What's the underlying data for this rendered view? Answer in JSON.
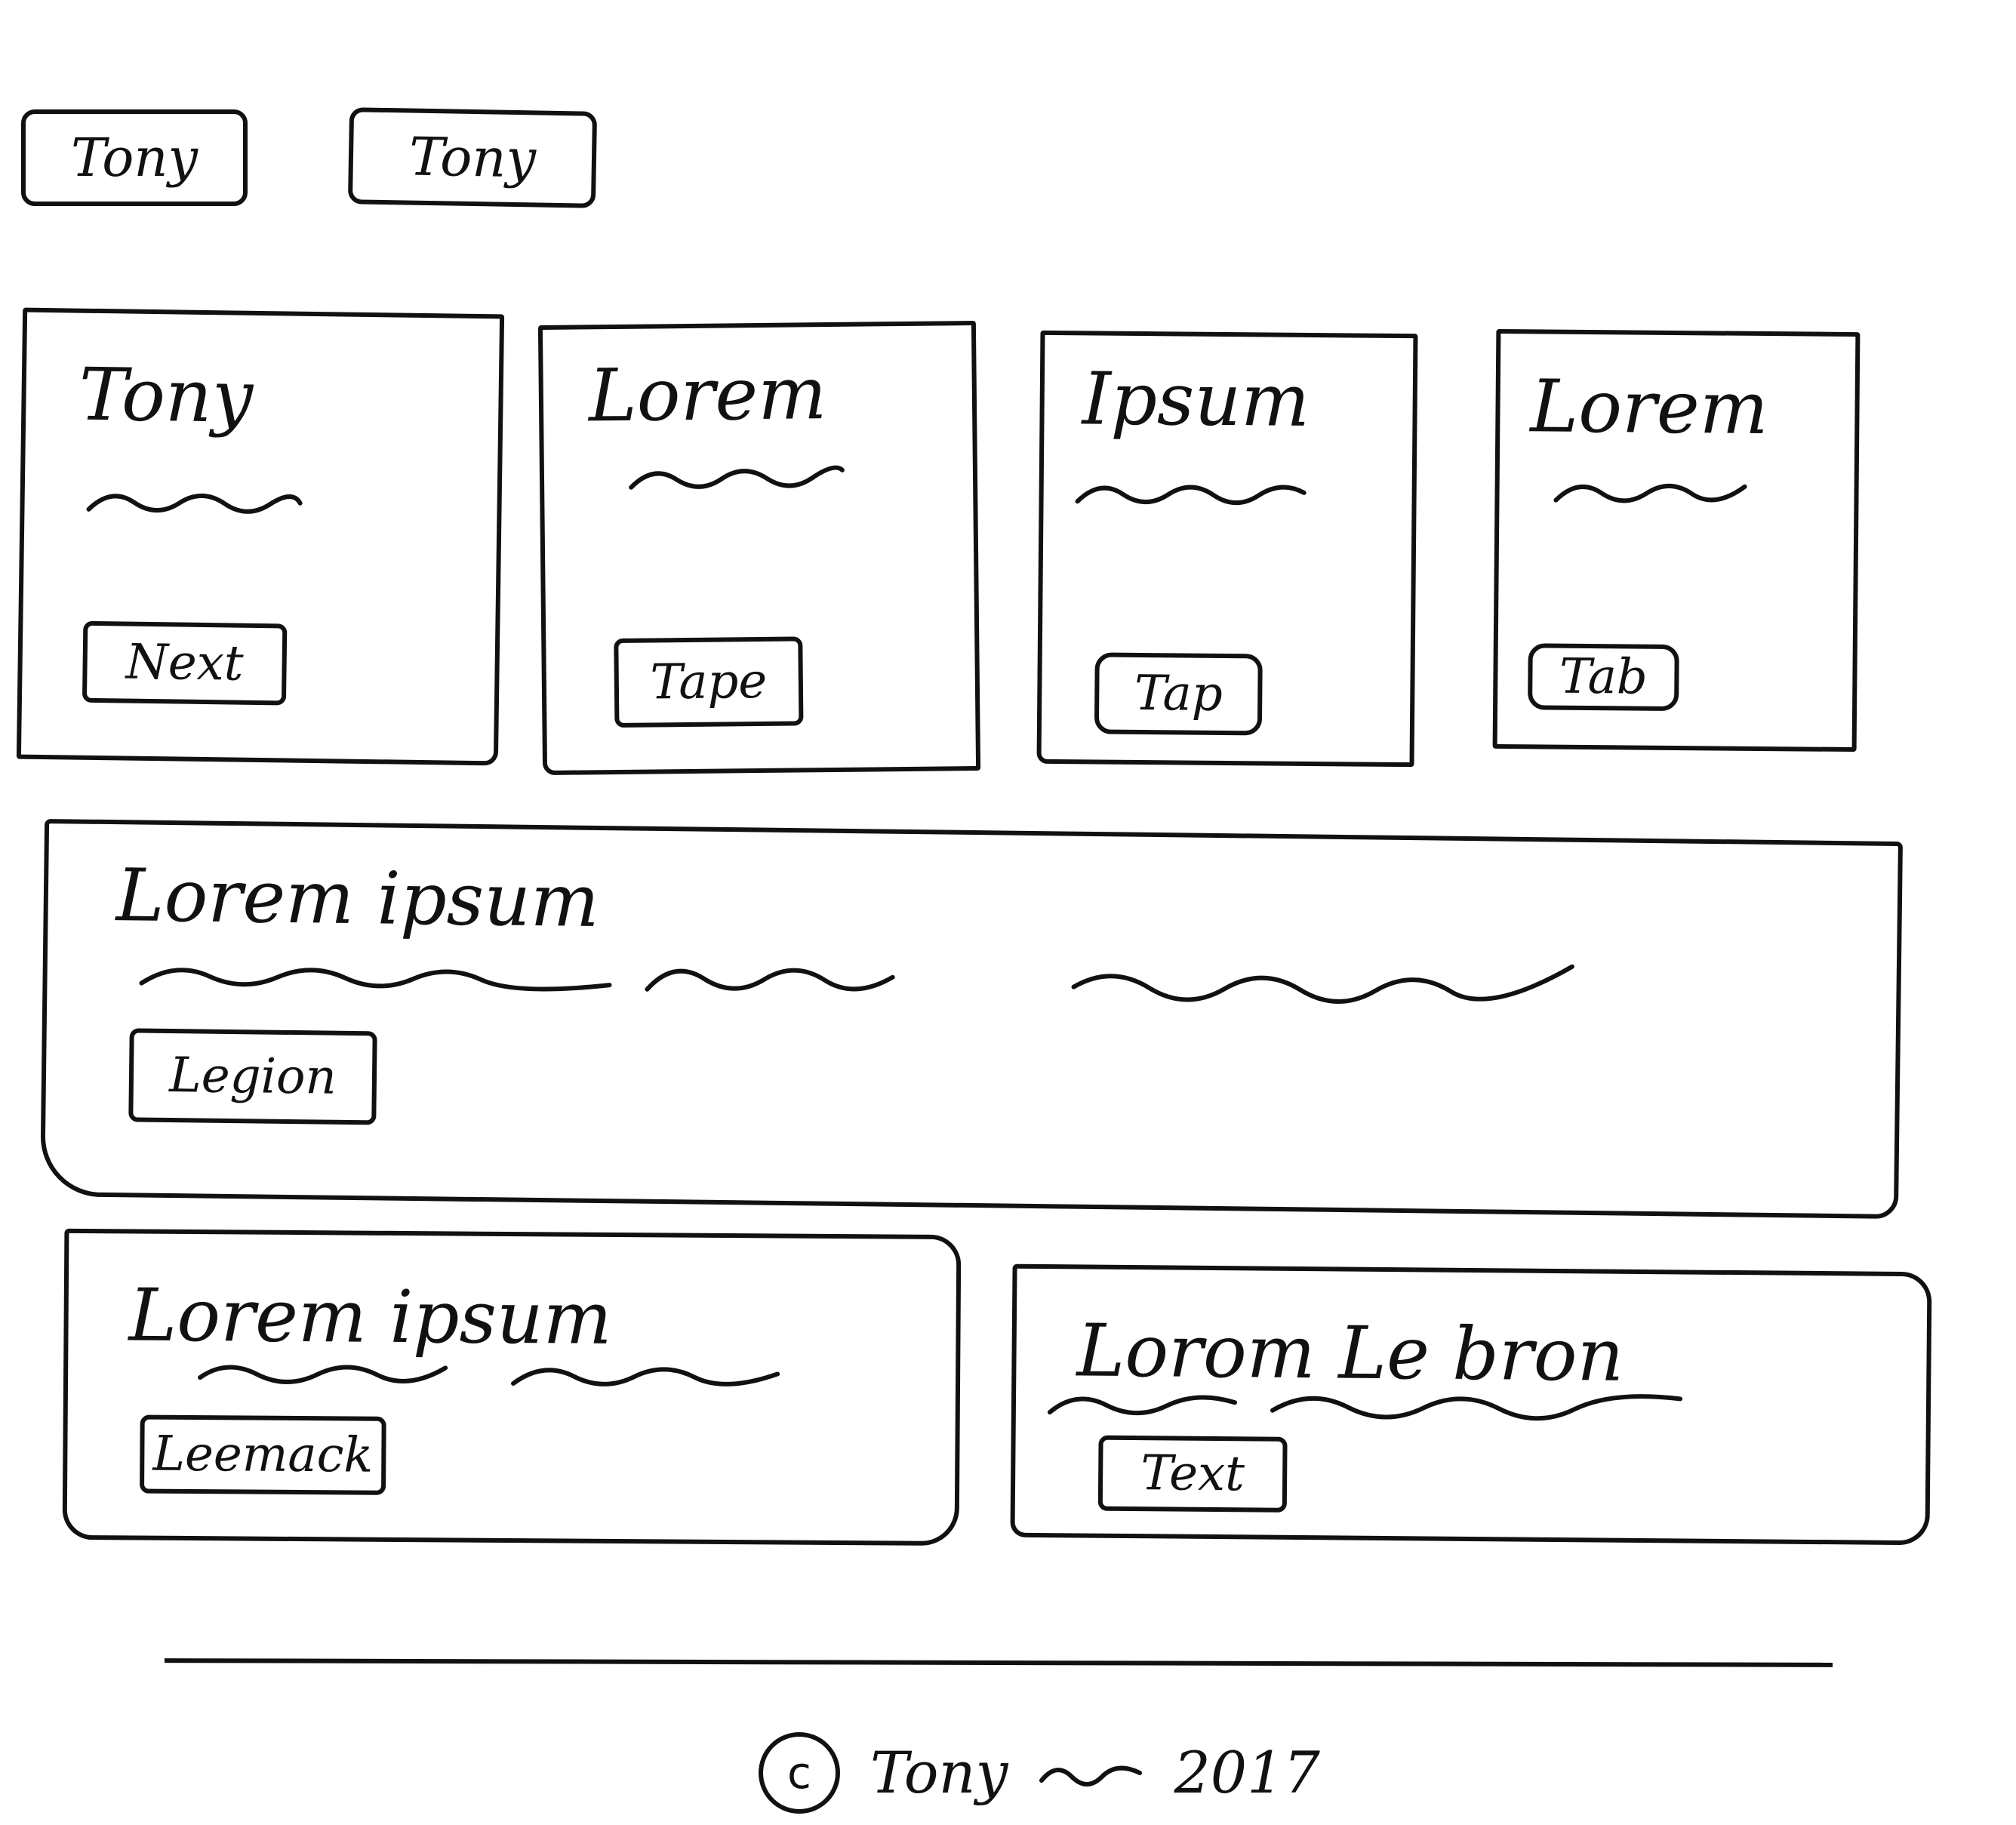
{
  "nav": {
    "items": [
      {
        "label": "Tony"
      },
      {
        "label": "Tony"
      }
    ]
  },
  "cards": [
    {
      "title": "Tony",
      "button": "Next"
    },
    {
      "title": "Lorem",
      "button": "Tape"
    },
    {
      "title": "Ipsum",
      "button": "Tap"
    },
    {
      "title": "Lorem",
      "button": "Tab"
    }
  ],
  "hero": {
    "title": "Lorem ipsum",
    "button": "Legion"
  },
  "features": [
    {
      "title": "Lorem ipsum",
      "button": "Leemack"
    },
    {
      "title": "Lorom Le bron",
      "button": "Text"
    }
  ],
  "footer": {
    "copyright_symbol": "c",
    "owner": "Tony",
    "year": "2017"
  }
}
